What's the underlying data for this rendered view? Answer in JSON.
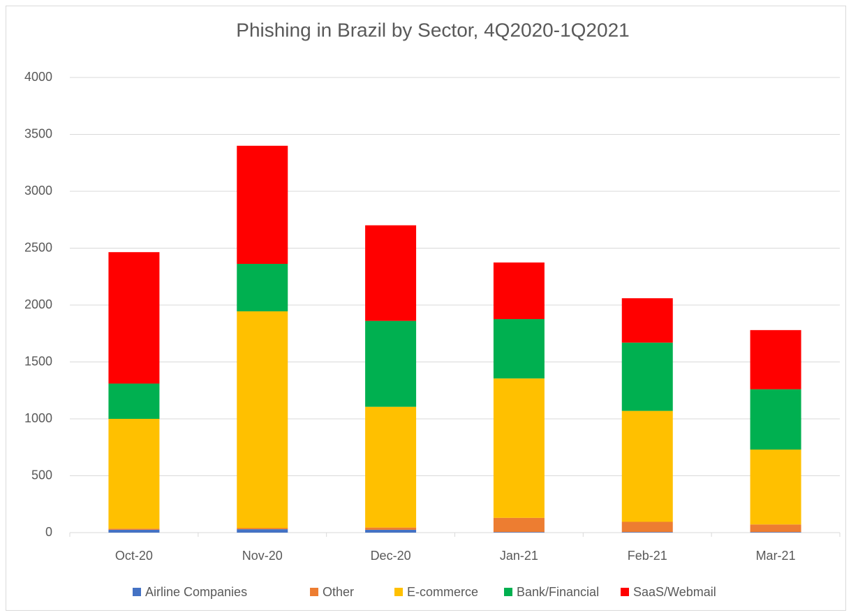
{
  "chart_data": {
    "type": "stacked_bar",
    "title": "Phishing in Brazil by Sector, 4Q2020-1Q2021",
    "categories": [
      "Oct-20",
      "Nov-20",
      "Dec-20",
      "Jan-21",
      "Feb-21",
      "Mar-21"
    ],
    "series": [
      {
        "name": "Airline Companies",
        "color": "#4472c4",
        "values": [
          25,
          30,
          25,
          5,
          5,
          5
        ]
      },
      {
        "name": "Other",
        "color": "#ed7d31",
        "values": [
          10,
          10,
          20,
          125,
          90,
          67
        ]
      },
      {
        "name": "E-commerce",
        "color": "#ffc000",
        "values": [
          965,
          1905,
          1061,
          1225,
          975,
          658
        ]
      },
      {
        "name": "Bank/Financial",
        "color": "#00b050",
        "values": [
          310,
          417,
          755,
          522,
          600,
          530
        ]
      },
      {
        "name": "SaaS/Webmail",
        "color": "#ff0000",
        "values": [
          1155,
          1038,
          840,
          497,
          390,
          520
        ]
      }
    ],
    "ylim": [
      0,
      4000
    ],
    "yticks": [
      0,
      500,
      1000,
      1500,
      2000,
      2500,
      3000,
      3500,
      4000
    ],
    "grid": true,
    "legend": "bottom"
  }
}
